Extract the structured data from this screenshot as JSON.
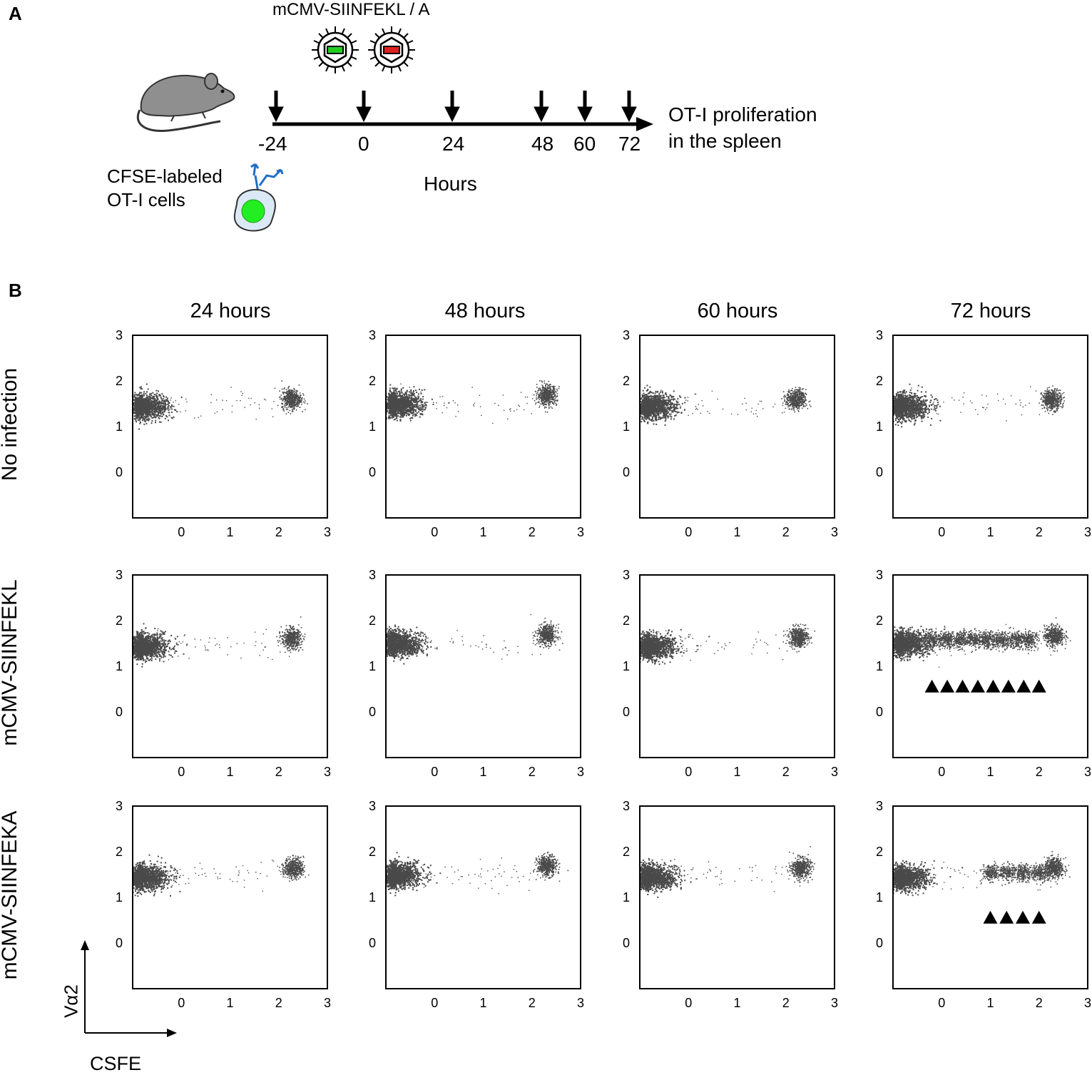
{
  "panel_a": {
    "letter": "A",
    "virus_label": "mCMV-SIINFEKL / A",
    "cell_label_line1": "CFSE-labeled",
    "cell_label_line2": "OT-I cells",
    "timepoints": [
      "-24",
      "0",
      "24",
      "48",
      "60",
      "72"
    ],
    "axis_label": "Hours",
    "readout_line1": "OT-I proliferation",
    "readout_line2": "in the spleen"
  },
  "panel_b": {
    "letter": "B",
    "columns": [
      "24 hours",
      "48 hours",
      "60 hours",
      "72 hours"
    ],
    "rows": [
      "No infection",
      "mCMV-SIINFEKL",
      "mCMV-SIINFEKA"
    ],
    "y_axis_label": "Vα2",
    "x_axis_label": "CSFE"
  },
  "colors": {
    "dots": "#4a4a4a",
    "green": "#22cc22",
    "red": "#dd2222",
    "cell_blue": "#dbe9f6",
    "antibody_blue": "#1f6fc4"
  },
  "chart_data": [
    {
      "type": "scatter",
      "xlabel": "CSFE",
      "ylabel": "Vα2",
      "x_ticks": [
        "0",
        "1",
        "2",
        "3"
      ],
      "y_ticks": [
        "0",
        "1",
        "2",
        "3"
      ],
      "xlim": [
        -1,
        3
      ],
      "ylim": [
        -1,
        3
      ],
      "panels": [
        {
          "row": "No infection",
          "column": "24 hours",
          "clusters": [
            {
              "x": -0.8,
              "y": 1.45
            },
            {
              "x": 2.25,
              "y": 1.62
            }
          ],
          "divided_peaks": 0
        },
        {
          "row": "No infection",
          "column": "48 hours",
          "clusters": [
            {
              "x": -0.8,
              "y": 1.5
            },
            {
              "x": 2.3,
              "y": 1.7
            }
          ],
          "divided_peaks": 0
        },
        {
          "row": "No infection",
          "column": "60 hours",
          "clusters": [
            {
              "x": -0.8,
              "y": 1.45
            },
            {
              "x": 2.2,
              "y": 1.6
            }
          ],
          "divided_peaks": 0
        },
        {
          "row": "No infection",
          "column": "72 hours",
          "clusters": [
            {
              "x": -0.8,
              "y": 1.45
            },
            {
              "x": 2.25,
              "y": 1.6
            }
          ],
          "divided_peaks": 0
        },
        {
          "row": "mCMV-SIINFEKL",
          "column": "24 hours",
          "clusters": [
            {
              "x": -0.8,
              "y": 1.45
            },
            {
              "x": 2.25,
              "y": 1.62
            }
          ],
          "divided_peaks": 0
        },
        {
          "row": "mCMV-SIINFEKL",
          "column": "48 hours",
          "clusters": [
            {
              "x": -0.8,
              "y": 1.5
            },
            {
              "x": 2.3,
              "y": 1.7
            }
          ],
          "divided_peaks": 0
        },
        {
          "row": "mCMV-SIINFEKL",
          "column": "60 hours",
          "clusters": [
            {
              "x": -0.8,
              "y": 1.45
            },
            {
              "x": 2.25,
              "y": 1.65
            }
          ],
          "divided_peaks": 0
        },
        {
          "row": "mCMV-SIINFEKL",
          "column": "72 hours",
          "clusters": [
            {
              "x": -0.8,
              "y": 1.5
            },
            {
              "x": 2.3,
              "y": 1.68
            }
          ],
          "divided_peaks": 8
        },
        {
          "row": "mCMV-SIINFEKA",
          "column": "24 hours",
          "clusters": [
            {
              "x": -0.8,
              "y": 1.45
            },
            {
              "x": 2.3,
              "y": 1.65
            }
          ],
          "divided_peaks": 0
        },
        {
          "row": "mCMV-SIINFEKA",
          "column": "48 hours",
          "clusters": [
            {
              "x": -0.8,
              "y": 1.5
            },
            {
              "x": 2.3,
              "y": 1.7
            }
          ],
          "divided_peaks": 0
        },
        {
          "row": "mCMV-SIINFEKA",
          "column": "60 hours",
          "clusters": [
            {
              "x": -0.8,
              "y": 1.45
            },
            {
              "x": 2.3,
              "y": 1.65
            }
          ],
          "divided_peaks": 0
        },
        {
          "row": "mCMV-SIINFEKA",
          "column": "72 hours",
          "clusters": [
            {
              "x": -0.8,
              "y": 1.45
            },
            {
              "x": 2.3,
              "y": 1.65
            }
          ],
          "divided_peaks": 4
        }
      ]
    }
  ]
}
